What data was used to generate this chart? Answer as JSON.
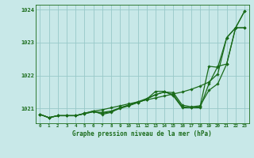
{
  "title": "Graphe pression niveau de la mer (hPa)",
  "background_color": "#c8e8e8",
  "plot_background": "#c8e8e8",
  "grid_color": "#98c8c8",
  "line_color": "#1a6b1a",
  "xlim": [
    -0.5,
    23.5
  ],
  "ylim": [
    1020.55,
    1024.15
  ],
  "yticks": [
    1021,
    1022,
    1023,
    1024
  ],
  "xticks": [
    0,
    1,
    2,
    3,
    4,
    5,
    6,
    7,
    8,
    9,
    10,
    11,
    12,
    13,
    14,
    15,
    16,
    17,
    18,
    19,
    20,
    21,
    22,
    23
  ],
  "series": [
    [
      1020.82,
      1020.72,
      1020.78,
      1020.78,
      1020.78,
      1020.85,
      1020.92,
      1020.96,
      1021.02,
      1021.08,
      1021.14,
      1021.2,
      1021.26,
      1021.32,
      1021.38,
      1021.44,
      1021.5,
      1021.58,
      1021.68,
      1021.8,
      1022.05,
      1023.15,
      1023.45,
      1023.95
    ],
    [
      1020.82,
      1020.72,
      1020.78,
      1020.78,
      1020.78,
      1020.84,
      1020.9,
      1020.88,
      1020.92,
      1021.02,
      1021.1,
      1021.2,
      1021.3,
      1021.42,
      1021.5,
      1021.48,
      1021.1,
      1021.05,
      1021.08,
      1021.55,
      1021.75,
      1022.35,
      1023.45,
      1023.95
    ],
    [
      1020.82,
      1020.72,
      1020.78,
      1020.78,
      1020.78,
      1020.84,
      1020.9,
      1020.85,
      1020.9,
      1021.0,
      1021.08,
      1021.18,
      1021.28,
      1021.42,
      1021.5,
      1021.42,
      1021.05,
      1021.02,
      1021.05,
      1022.28,
      1022.25,
      1023.15,
      1023.45,
      1023.45
    ],
    [
      1020.82,
      1020.72,
      1020.78,
      1020.78,
      1020.78,
      1020.85,
      1020.92,
      1020.82,
      1020.88,
      1021.02,
      1021.1,
      1021.18,
      1021.28,
      1021.52,
      1021.52,
      1021.38,
      1021.02,
      1021.02,
      1021.02,
      1021.75,
      1022.28,
      1022.35,
      1023.45,
      1023.45
    ]
  ]
}
